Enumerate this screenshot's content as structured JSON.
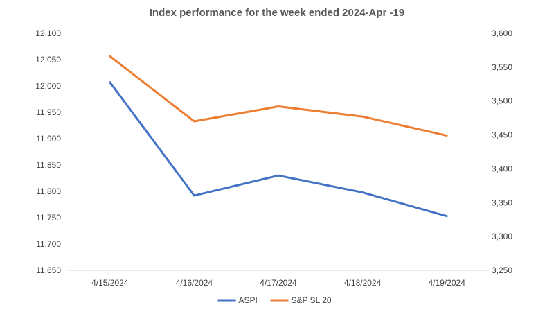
{
  "chart_data": {
    "type": "line",
    "title": "Index performance for the week ended 2024-Apr -19",
    "categories": [
      "4/15/2024",
      "4/16/2024",
      "4/17/2024",
      "4/18/2024",
      "4/19/2024"
    ],
    "series": [
      {
        "name": "ASPI",
        "axis": "left",
        "color": "#4472C4",
        "values": [
          12007,
          11792,
          11830,
          11798,
          11753
        ]
      },
      {
        "name": "S&P SL 20",
        "axis": "right",
        "color": "#ED7D31",
        "values": [
          3566,
          3470,
          3492,
          3477,
          3449
        ]
      }
    ],
    "y_left": {
      "range": [
        11650,
        12100
      ],
      "ticks": [
        "11,650",
        "11,700",
        "11,750",
        "11,800",
        "11,850",
        "11,900",
        "11,950",
        "12,000",
        "12,050",
        "12,100"
      ]
    },
    "y_right": {
      "range": [
        3250,
        3600
      ],
      "ticks": [
        "3,250",
        "3,300",
        "3,350",
        "3,400",
        "3,450",
        "3,500",
        "3,550",
        "3,600"
      ]
    },
    "xlabel": "",
    "ylabel": "",
    "grid": false,
    "legend_position": "bottom"
  }
}
